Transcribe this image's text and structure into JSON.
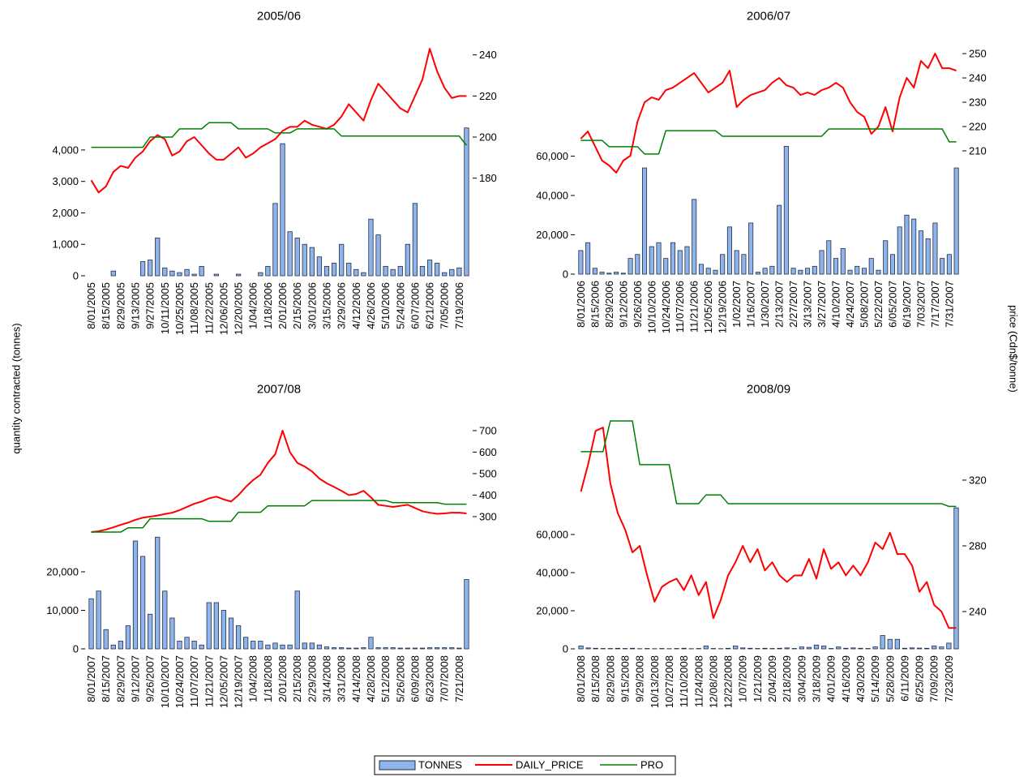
{
  "chart_data": [
    {
      "type": "combo",
      "title": "2005/06",
      "ylabel": "quantity contracted (tonnes)",
      "y2label": "price (Cdn$/tonne)",
      "categories": [
        "8/01/2005",
        null,
        "8/15/2005",
        null,
        "8/29/2005",
        null,
        "9/13/2005",
        null,
        "9/27/2005",
        null,
        "10/11/2005",
        null,
        "10/25/2005",
        null,
        "11/08/2005",
        null,
        "11/22/2005",
        null,
        "12/06/2005",
        null,
        "12/20/2005",
        null,
        "1/04/2006",
        null,
        "1/18/2006",
        null,
        "2/01/2006",
        null,
        "2/15/2006",
        null,
        "3/01/2006",
        null,
        "3/15/2006",
        null,
        "3/29/2006",
        null,
        "4/12/2006",
        null,
        "4/26/2006",
        null,
        "5/10/2006",
        null,
        "5/24/2006",
        null,
        "6/07/2006",
        null,
        "6/21/2006",
        null,
        "7/05/2006",
        null,
        "7/19/2006",
        null
      ],
      "series": [
        {
          "name": "TONNES",
          "kind": "bar",
          "color": "#8fb4ea",
          "values": [
            0,
            0,
            0,
            150,
            0,
            0,
            0,
            450,
            500,
            1200,
            250,
            150,
            100,
            200,
            50,
            300,
            0,
            50,
            0,
            0,
            50,
            0,
            0,
            100,
            300,
            2300,
            4200,
            1400,
            1200,
            1000,
            900,
            600,
            300,
            400,
            1000,
            400,
            200,
            100,
            1800,
            1300,
            300,
            200,
            300,
            1000,
            2300,
            300,
            500,
            400,
            100,
            200,
            250,
            4700
          ]
        },
        {
          "name": "DAILY_PRICE",
          "kind": "line",
          "axis": "y2",
          "color": "#ff0000",
          "values": [
            179,
            173,
            176,
            183,
            186,
            185,
            190,
            193,
            198,
            201,
            199,
            191,
            193,
            198,
            200,
            196,
            192,
            189,
            189,
            192,
            195,
            190,
            192,
            195,
            197,
            199,
            203,
            205,
            205,
            208,
            206,
            205,
            204,
            206,
            210,
            216,
            212,
            208,
            218,
            226,
            222,
            218,
            214,
            212,
            220,
            228,
            243,
            232,
            224,
            219,
            220,
            220
          ]
        },
        {
          "name": "PRO",
          "kind": "line",
          "axis": "y2",
          "color": "#008000",
          "values": [
            195,
            195,
            195,
            195,
            195,
            195,
            195,
            195,
            200,
            200,
            200,
            200,
            204,
            204,
            204,
            204,
            207,
            207,
            207,
            207,
            204,
            204,
            204,
            204,
            204,
            202,
            202,
            202,
            204,
            204,
            204,
            204,
            204,
            204,
            200.5,
            200.5,
            200.5,
            200.5,
            200.5,
            200.5,
            200.5,
            200.5,
            200.5,
            200.5,
            200.5,
            200.5,
            200.5,
            200.5,
            200.5,
            200.5,
            200.5,
            196
          ]
        }
      ],
      "ylim": [
        0,
        7350
      ],
      "yticks": [
        0,
        {
          "value": 1000,
          "label": "1,000"
        },
        {
          "value": 2000,
          "label": "2,000"
        },
        {
          "value": 3000,
          "label": "3,000"
        },
        {
          "value": 4000,
          "label": "4,000"
        }
      ],
      "y2lim": [
        132.5,
        245
      ],
      "y2ticks": [
        180,
        200,
        220,
        240
      ]
    },
    {
      "type": "combo",
      "title": "2006/07",
      "categories": [
        "8/01/2006",
        null,
        "8/15/2006",
        null,
        "8/29/2006",
        null,
        "9/12/2006",
        null,
        "9/26/2006",
        null,
        "10/10/2006",
        null,
        "10/24/2006",
        null,
        "11/07/2006",
        null,
        "11/21/2006",
        null,
        "12/05/2006",
        null,
        "12/19/2006",
        null,
        "1/02/2007",
        null,
        "1/16/2007",
        null,
        "1/30/2007",
        null,
        "2/13/2007",
        null,
        "2/27/2007",
        null,
        "3/13/2007",
        null,
        "3/27/2007",
        null,
        "4/10/2007",
        null,
        "4/24/2007",
        null,
        "5/08/2007",
        null,
        "5/22/2007",
        null,
        "6/05/2007",
        null,
        "6/19/2007",
        null,
        "7/03/2007",
        null,
        "7/17/2007",
        null,
        "7/31/2007",
        null
      ],
      "series": [
        {
          "kind": "bar",
          "color": "#8fb4ea",
          "values": [
            12000,
            16000,
            3000,
            1000,
            500,
            1000,
            500,
            8000,
            10000,
            54000,
            14000,
            16000,
            8000,
            16000,
            12000,
            14000,
            38000,
            5000,
            3000,
            2000,
            10000,
            24000,
            12000,
            10000,
            26000,
            1000,
            3000,
            4000,
            35000,
            65000,
            3000,
            2000,
            3000,
            4000,
            12000,
            17000,
            8000,
            13000,
            2000,
            4000,
            3000,
            8000,
            2000,
            17000,
            10000,
            24000,
            30000,
            28000,
            22000,
            18000,
            26000,
            8000,
            10000,
            54000
          ]
        },
        {
          "kind": "line",
          "axis": "y2",
          "color": "#ff0000",
          "values": [
            215,
            218,
            212,
            206,
            204,
            201,
            206,
            208,
            222,
            230,
            232,
            231,
            235,
            236,
            238,
            240,
            242,
            238,
            234,
            236,
            238,
            243,
            228,
            231,
            233,
            234,
            235,
            238,
            240,
            237,
            236,
            233,
            234,
            233,
            235,
            236,
            238,
            236,
            230,
            226,
            224,
            217,
            220,
            228,
            218,
            232,
            240,
            236,
            247,
            244,
            250,
            244,
            244,
            243
          ]
        },
        {
          "kind": "line",
          "axis": "y2",
          "color": "#008000",
          "values": [
            214.3,
            214.3,
            214.3,
            214.3,
            211.7,
            211.7,
            211.7,
            211.7,
            211.7,
            208.7,
            208.7,
            208.7,
            218.3,
            218.3,
            218.3,
            218.3,
            218.3,
            218.3,
            218.3,
            218.3,
            216,
            216,
            216,
            216,
            216,
            216,
            216,
            216,
            216,
            216,
            216,
            216,
            216,
            216,
            216,
            219,
            219,
            219,
            219,
            219,
            219,
            219,
            219,
            219,
            219,
            219,
            219,
            219,
            219,
            219,
            219,
            219,
            213.7,
            213.7
          ]
        }
      ],
      "ylim": [
        0,
        116700
      ],
      "yticks": [
        0,
        {
          "value": 20000,
          "label": "20,000"
        },
        {
          "value": 40000,
          "label": "40,000"
        },
        {
          "value": 60000,
          "label": "60,000"
        }
      ],
      "y2lim": [
        159.3,
        253.7
      ],
      "y2ticks": [
        210,
        220,
        230,
        240,
        250
      ]
    },
    {
      "type": "combo",
      "title": "2007/08",
      "categories": [
        "8/01/2007",
        null,
        "8/15/2007",
        null,
        "8/29/2007",
        null,
        "9/12/2007",
        null,
        "9/26/2007",
        null,
        "10/10/2007",
        null,
        "10/24/2007",
        null,
        "11/07/2007",
        null,
        "11/21/2007",
        null,
        "12/05/2007",
        null,
        "12/19/2007",
        null,
        "1/04/2008",
        null,
        "1/18/2008",
        null,
        "2/01/2008",
        null,
        "2/15/2008",
        null,
        "2/29/2008",
        null,
        "3/14/2008",
        null,
        "3/31/2008",
        null,
        "4/14/2008",
        null,
        "4/28/2008",
        null,
        "5/12/2008",
        null,
        "5/26/2008",
        null,
        "6/09/2008",
        null,
        "6/23/2008",
        null,
        "7/07/2008",
        null,
        "7/21/2008",
        null
      ],
      "series": [
        {
          "kind": "bar",
          "color": "#8fb4ea",
          "values": [
            13000,
            15000,
            5000,
            1000,
            2000,
            6000,
            28000,
            24000,
            9000,
            29000,
            15000,
            8000,
            2000,
            3000,
            2000,
            1000,
            12000,
            12000,
            10000,
            8000,
            6000,
            3000,
            2000,
            2000,
            1000,
            1500,
            1000,
            1000,
            15000,
            1500,
            1500,
            1000,
            500,
            300,
            300,
            200,
            200,
            300,
            3000,
            300,
            300,
            300,
            200,
            200,
            200,
            200,
            300,
            300,
            300,
            300,
            200,
            18000
          ]
        },
        {
          "kind": "line",
          "axis": "y2",
          "color": "#ff0000",
          "values": [
            228,
            232,
            240,
            250,
            262,
            272,
            285,
            295,
            300,
            305,
            312,
            318,
            330,
            345,
            360,
            370,
            385,
            393,
            380,
            370,
            400,
            438,
            470,
            495,
            550,
            590,
            700,
            600,
            550,
            533,
            510,
            477,
            455,
            438,
            420,
            400,
            405,
            420,
            390,
            355,
            350,
            345,
            350,
            355,
            340,
            325,
            318,
            313,
            315,
            318,
            318,
            315
          ]
        },
        {
          "kind": "line",
          "axis": "y2",
          "color": "#008000",
          "values": [
            228,
            228,
            228,
            228,
            228,
            248,
            248,
            248,
            290,
            290,
            290,
            290,
            290,
            290,
            290,
            290,
            278,
            278,
            278,
            278,
            320,
            320,
            320,
            320,
            350,
            350,
            350,
            350,
            350,
            350,
            375,
            375,
            375,
            375,
            375,
            375,
            375,
            375,
            375,
            375,
            375,
            365,
            365,
            365,
            365,
            365,
            365,
            365,
            358,
            358,
            358,
            358
          ]
        }
      ],
      "ylim": [
        0,
        60000
      ],
      "yticks": [
        0,
        {
          "value": 10000,
          "label": "10,000"
        },
        {
          "value": 20000,
          "label": "20,000"
        }
      ],
      "y2lim": [
        -315,
        760
      ],
      "y2ticks": [
        300,
        400,
        500,
        600,
        700
      ]
    },
    {
      "type": "combo",
      "title": "2008/09",
      "categories": [
        "8/01/2008",
        null,
        "8/15/2008",
        null,
        "8/29/2008",
        null,
        "9/15/2008",
        null,
        "9/29/2008",
        null,
        "10/13/2008",
        null,
        "10/27/2008",
        null,
        "11/10/2008",
        null,
        "11/24/2008",
        null,
        "12/08/2008",
        null,
        "12/22/2008",
        null,
        "1/07/2009",
        null,
        "1/21/2009",
        null,
        "2/04/2009",
        null,
        "2/18/2009",
        null,
        "3/04/2009",
        null,
        "3/18/2009",
        null,
        "4/01/2009",
        null,
        "4/16/2009",
        null,
        "4/30/2009",
        null,
        "5/14/2009",
        null,
        "5/28/2009",
        null,
        "6/11/2009",
        null,
        "6/25/2009",
        null,
        "7/09/2009",
        null,
        "7/23/2009",
        null
      ],
      "series": [
        {
          "kind": "bar",
          "color": "#8fb4ea",
          "values": [
            1500,
            500,
            300,
            200,
            200,
            300,
            200,
            300,
            100,
            200,
            100,
            200,
            100,
            200,
            300,
            100,
            200,
            1500,
            200,
            100,
            300,
            1500,
            500,
            300,
            200,
            300,
            200,
            300,
            500,
            200,
            1000,
            800,
            2000,
            1500,
            200,
            1000,
            300,
            500,
            300,
            200,
            1000,
            7000,
            5000,
            5000,
            300,
            500,
            400,
            300,
            1500,
            1000,
            3000,
            74000
          ]
        },
        {
          "kind": "line",
          "axis": "y2",
          "color": "#ff0000",
          "values": [
            313,
            330,
            350,
            352,
            318,
            300,
            290,
            276,
            280,
            262,
            246,
            255,
            258,
            260,
            253,
            262,
            250,
            258,
            236,
            247,
            262,
            270,
            280,
            270,
            278,
            265,
            270,
            262,
            258,
            262,
            262,
            272,
            260,
            278,
            266,
            270,
            262,
            268,
            262,
            270,
            282,
            278,
            288,
            275,
            275,
            268,
            252,
            258,
            244,
            240,
            230,
            230
          ]
        },
        {
          "kind": "line",
          "axis": "y2",
          "color": "#008000",
          "values": [
            337.3,
            337.3,
            337.3,
            337.3,
            356,
            356,
            356,
            356,
            329.4,
            329.4,
            329.4,
            329.4,
            329.4,
            305.7,
            305.7,
            305.7,
            305.7,
            311,
            311,
            311,
            305.7,
            305.7,
            305.7,
            305.7,
            305.7,
            305.7,
            305.7,
            305.7,
            305.7,
            305.7,
            305.7,
            305.7,
            305.7,
            305.7,
            305.7,
            305.7,
            305.7,
            305.7,
            305.7,
            305.7,
            305.7,
            305.7,
            305.7,
            305.7,
            305.7,
            305.7,
            305.7,
            305.7,
            305.7,
            305.7,
            304,
            304
          ]
        }
      ],
      "ylim": [
        0,
        121300
      ],
      "yticks": [
        0,
        {
          "value": 20000,
          "label": "20,000"
        },
        {
          "value": 40000,
          "label": "40,000"
        },
        {
          "value": 60000,
          "label": "60,000"
        }
      ],
      "y2lim": [
        217.3,
        358
      ],
      "y2ticks": [
        240,
        280,
        320
      ]
    }
  ]
}
